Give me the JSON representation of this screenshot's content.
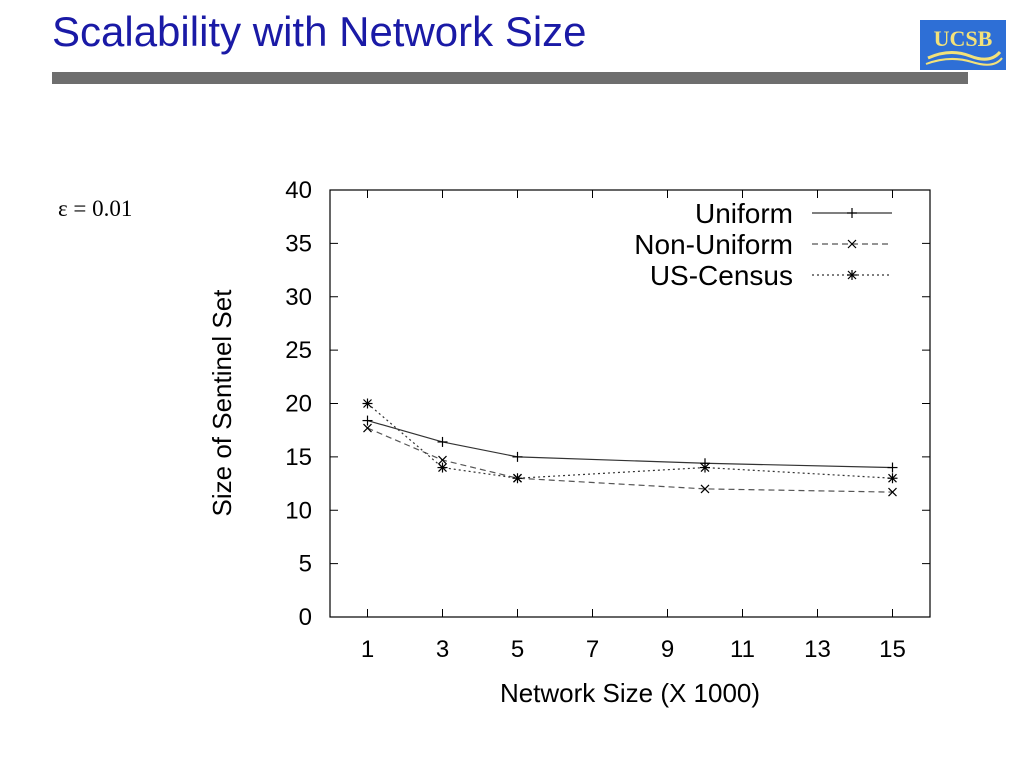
{
  "slide": {
    "title": "Scalability with Network Size",
    "logo_text": "UCSB",
    "epsilon_label": "ε = 0.01"
  },
  "colors": {
    "title": "#1a1aa6",
    "rule": "#6e6e6e",
    "logo_bg": "#2e6fd6",
    "logo_text": "#f3e27a"
  },
  "chart_data": {
    "type": "line",
    "title": "",
    "xlabel": "Network Size (X 1000)",
    "ylabel": "Size of Sentinel Set",
    "xlim": [
      0,
      16
    ],
    "ylim": [
      0,
      40
    ],
    "x_ticks": [
      1,
      3,
      5,
      7,
      9,
      11,
      13,
      15
    ],
    "y_ticks": [
      0,
      5,
      10,
      15,
      20,
      25,
      30,
      35,
      40
    ],
    "legend_position": "top-right",
    "grid": false,
    "series": [
      {
        "name": "Uniform",
        "marker": "plus",
        "dash": "solid",
        "x": [
          1,
          3,
          5,
          10,
          15
        ],
        "y": [
          18.4,
          16.4,
          15,
          14.4,
          14
        ]
      },
      {
        "name": "Non-Uniform",
        "marker": "cross",
        "dash": "dashed",
        "x": [
          1,
          3,
          5,
          10,
          15
        ],
        "y": [
          17.7,
          14.7,
          13,
          12,
          11.7
        ]
      },
      {
        "name": "US-Census",
        "marker": "star",
        "dash": "dotted",
        "x": [
          1,
          3,
          5,
          10,
          15
        ],
        "y": [
          20,
          14,
          13,
          14,
          13
        ]
      }
    ]
  }
}
